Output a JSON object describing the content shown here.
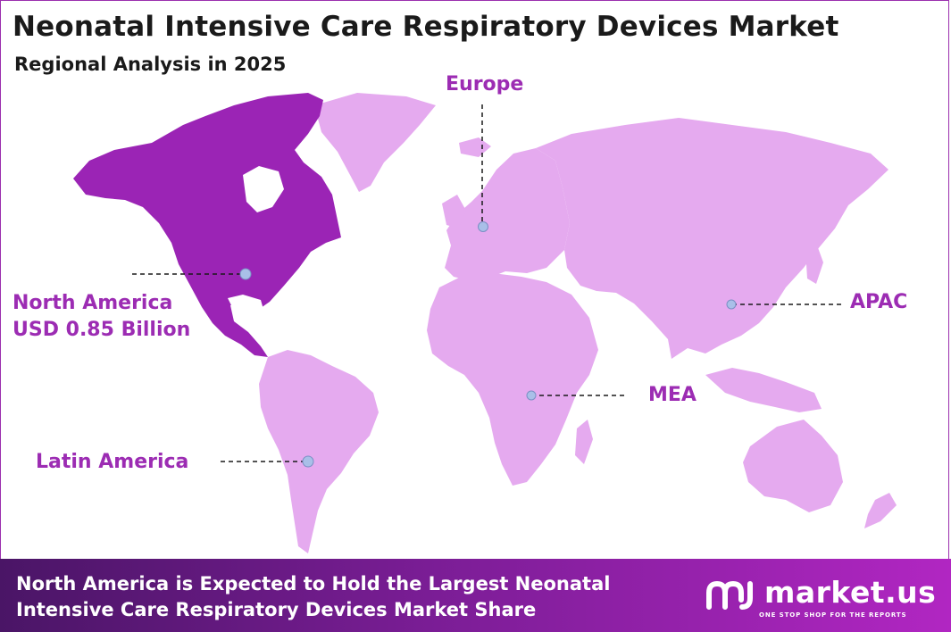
{
  "title": "Neonatal Intensive Care Respiratory Devices Market",
  "subtitle": "Regional Analysis in 2025",
  "colors": {
    "highlight_region": "#9b24b5",
    "other_regions": "#e5aaef",
    "label_text": "#9c2cb3",
    "marker": "#a9bfe8",
    "footer_gradient": [
      "#4a1566",
      "#b126c2"
    ]
  },
  "regions": [
    {
      "id": "north-america",
      "name": "North America",
      "value": "USD 0.85 Billion",
      "highlighted": true
    },
    {
      "id": "europe",
      "name": "Europe",
      "value": "",
      "highlighted": false
    },
    {
      "id": "apac",
      "name": "APAC",
      "value": "",
      "highlighted": false
    },
    {
      "id": "mea",
      "name": "MEA",
      "value": "",
      "highlighted": false
    },
    {
      "id": "latin-america",
      "name": "Latin America",
      "value": "",
      "highlighted": false
    }
  ],
  "footer": {
    "line1": "North America is Expected to Hold the Largest Neonatal",
    "line2": "Intensive Care Respiratory Devices Market Share"
  },
  "brand": {
    "name": "market.us",
    "tagline": "ONE STOP SHOP FOR THE REPORTS",
    "logo_icon": "market-us-logo-icon"
  }
}
